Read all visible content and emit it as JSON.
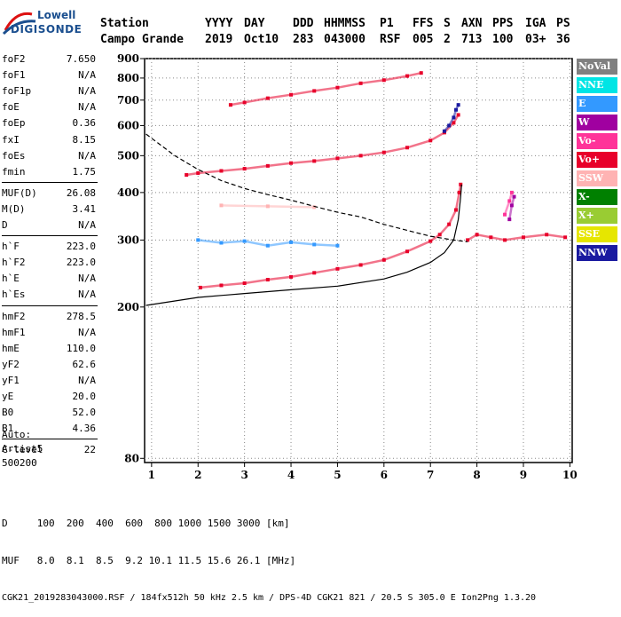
{
  "logo": {
    "line1": "Lowell",
    "line2": "DIGISONDE"
  },
  "header": {
    "labels": [
      "Station",
      "YYYY",
      "DAY",
      "DDD",
      "HHMMSS",
      "P1",
      "FFS",
      "S",
      "AXN",
      "PPS",
      "IGA",
      "PS"
    ],
    "values": [
      "Campo Grande",
      "2019",
      "Oct10",
      "283",
      "043000",
      "RSF",
      "005",
      "2",
      "713",
      "100",
      "03+",
      "36"
    ]
  },
  "params": [
    {
      "name": "foF2",
      "value": "7.650"
    },
    {
      "name": "foF1",
      "value": "N/A"
    },
    {
      "name": "foF1p",
      "value": "N/A"
    },
    {
      "name": "foE",
      "value": "N/A"
    },
    {
      "name": "foEp",
      "value": "0.36"
    },
    {
      "name": "fxI",
      "value": "8.15"
    },
    {
      "name": "foEs",
      "value": "N/A"
    },
    {
      "name": "fmin",
      "value": "1.75"
    },
    {
      "name": "MUF(D)",
      "value": "26.08"
    },
    {
      "name": "M(D)",
      "value": "3.41"
    },
    {
      "name": "D",
      "value": "N/A"
    },
    {
      "name": "h`F",
      "value": "223.0"
    },
    {
      "name": "h`F2",
      "value": "223.0"
    },
    {
      "name": "h`E",
      "value": "N/A"
    },
    {
      "name": "h`Es",
      "value": "N/A"
    },
    {
      "name": "hmF2",
      "value": "278.5"
    },
    {
      "name": "hmF1",
      "value": "N/A"
    },
    {
      "name": "hmE",
      "value": "110.0"
    },
    {
      "name": "yF2",
      "value": "62.6"
    },
    {
      "name": "yF1",
      "value": "N/A"
    },
    {
      "name": "yE",
      "value": "20.0"
    },
    {
      "name": "B0",
      "value": "52.0"
    },
    {
      "name": "B1",
      "value": "4.36"
    },
    {
      "name": "C-level",
      "value": "22"
    }
  ],
  "auto": {
    "line1": "Auto:",
    "line2": "Artist5",
    "line3": "500200"
  },
  "footer": {
    "d_row": "D     100  200  400  600  800 1000 1500 3000 [km]",
    "muf_row": "MUF   8.0  8.1  8.5  9.2 10.1 11.5 15.6 26.1 [MHz]",
    "info": "CGK21_2019283043000.RSF / 184fx512h 50 kHz 2.5 km / DPS-4D CGK21 821 / 20.5 S 305.0 E Ion2Png 1.3.20"
  },
  "legend": [
    {
      "label": "NoVal",
      "bg": "#808080",
      "fg": "#ffffff"
    },
    {
      "label": "NNE",
      "bg": "#00e5e5",
      "fg": "#ffffff"
    },
    {
      "label": "E",
      "bg": "#3399ff",
      "fg": "#ffffff"
    },
    {
      "label": "W",
      "bg": "#a000a0",
      "fg": "#ffffff"
    },
    {
      "label": "Vo-",
      "bg": "#ff3399",
      "fg": "#ffffff"
    },
    {
      "label": "Vo+",
      "bg": "#e8002a",
      "fg": "#ffffff"
    },
    {
      "label": "SSW",
      "bg": "#ffb3b3",
      "fg": "#ffffff"
    },
    {
      "label": "X-",
      "bg": "#008000",
      "fg": "#ffffff"
    },
    {
      "label": "X+",
      "bg": "#99cc33",
      "fg": "#ffffff"
    },
    {
      "label": "SSE",
      "bg": "#e6e600",
      "fg": "#ffffff"
    },
    {
      "label": "NNW",
      "bg": "#1a1aa0",
      "fg": "#ffffff"
    }
  ],
  "chart_data": {
    "type": "scatter",
    "xlabel": "",
    "ylabel": "",
    "xlim": [
      0.85,
      10.05
    ],
    "ylim": [
      78,
      900
    ],
    "y_scale": "log",
    "xticks": [
      1,
      2,
      3,
      4,
      5,
      6,
      7,
      8,
      9,
      10
    ],
    "yticks": [
      80,
      200,
      300,
      400,
      500,
      600,
      700,
      800,
      900
    ],
    "grid": "dotted",
    "series": [
      {
        "name": "Vo+",
        "color": "#e8002a",
        "points": [
          [
            2.05,
            225
          ],
          [
            2.5,
            228
          ],
          [
            3.0,
            231
          ],
          [
            3.5,
            236
          ],
          [
            4.0,
            240
          ],
          [
            4.5,
            246
          ],
          [
            5.0,
            252
          ],
          [
            5.5,
            258
          ],
          [
            6.0,
            266
          ],
          [
            6.5,
            280
          ],
          [
            7.0,
            298
          ],
          [
            7.2,
            310
          ],
          [
            7.4,
            330
          ],
          [
            7.55,
            360
          ],
          [
            7.62,
            400
          ],
          [
            7.65,
            420
          ]
        ]
      },
      {
        "name": "Vo+",
        "color": "#e8002a",
        "points": [
          [
            2.7,
            680
          ],
          [
            3.0,
            690
          ],
          [
            3.5,
            708
          ],
          [
            4.0,
            723
          ],
          [
            4.5,
            740
          ],
          [
            5.0,
            755
          ],
          [
            5.5,
            775
          ],
          [
            6.0,
            790
          ],
          [
            6.5,
            810
          ],
          [
            6.8,
            825
          ]
        ]
      },
      {
        "name": "Vo+",
        "color": "#e8002a",
        "points": [
          [
            1.75,
            445
          ],
          [
            2.0,
            450
          ],
          [
            2.5,
            456
          ],
          [
            3.0,
            462
          ],
          [
            3.5,
            470
          ],
          [
            4.0,
            478
          ],
          [
            4.5,
            484
          ],
          [
            5.0,
            492
          ],
          [
            5.5,
            500
          ],
          [
            6.0,
            510
          ],
          [
            6.5,
            525
          ],
          [
            7.0,
            548
          ],
          [
            7.3,
            575
          ],
          [
            7.5,
            610
          ],
          [
            7.6,
            640
          ]
        ]
      },
      {
        "name": "NNW",
        "color": "#1a1aa0",
        "points": [
          [
            7.3,
            580
          ],
          [
            7.4,
            600
          ],
          [
            7.5,
            630
          ],
          [
            7.55,
            660
          ],
          [
            7.6,
            680
          ]
        ]
      },
      {
        "name": "E",
        "color": "#3399ff",
        "points": [
          [
            2.0,
            300
          ],
          [
            2.5,
            295
          ],
          [
            3.0,
            298
          ],
          [
            3.5,
            290
          ],
          [
            4.0,
            296
          ],
          [
            4.5,
            292
          ],
          [
            5.0,
            290
          ]
        ]
      },
      {
        "name": "Vo+",
        "color": "#e8002a",
        "points": [
          [
            7.8,
            300
          ],
          [
            8.0,
            310
          ],
          [
            8.3,
            305
          ],
          [
            8.6,
            300
          ],
          [
            9.0,
            305
          ],
          [
            9.5,
            310
          ],
          [
            9.9,
            305
          ]
        ]
      },
      {
        "name": "Vo-",
        "color": "#ff3399",
        "points": [
          [
            8.6,
            350
          ],
          [
            8.7,
            380
          ],
          [
            8.75,
            400
          ]
        ]
      },
      {
        "name": "W",
        "color": "#a000a0",
        "points": [
          [
            8.7,
            340
          ],
          [
            8.75,
            370
          ],
          [
            8.8,
            390
          ]
        ]
      },
      {
        "name": "SSW",
        "color": "#ffb3b3",
        "points": [
          [
            2.5,
            370
          ],
          [
            3.5,
            368
          ],
          [
            4.5,
            366
          ]
        ]
      },
      {
        "name": "",
        "color": "#000000",
        "style": "solid",
        "points": [
          [
            0.88,
            202
          ],
          [
            2.0,
            212
          ],
          [
            3.0,
            217
          ],
          [
            4.0,
            222
          ],
          [
            5.0,
            227
          ],
          [
            6.0,
            237
          ],
          [
            6.5,
            247
          ],
          [
            7.0,
            262
          ],
          [
            7.3,
            278
          ],
          [
            7.5,
            300
          ],
          [
            7.6,
            340
          ],
          [
            7.65,
            390
          ],
          [
            7.67,
            420
          ]
        ]
      },
      {
        "name": "",
        "color": "#000000",
        "style": "dashed",
        "points": [
          [
            0.88,
            570
          ],
          [
            1.5,
            500
          ],
          [
            2.0,
            460
          ],
          [
            2.5,
            430
          ],
          [
            3.0,
            410
          ],
          [
            3.5,
            395
          ],
          [
            4.0,
            382
          ],
          [
            4.5,
            368
          ],
          [
            5.0,
            355
          ],
          [
            5.5,
            345
          ],
          [
            6.0,
            330
          ],
          [
            6.5,
            318
          ],
          [
            7.0,
            307
          ],
          [
            7.5,
            300
          ],
          [
            7.8,
            297
          ]
        ]
      }
    ]
  }
}
